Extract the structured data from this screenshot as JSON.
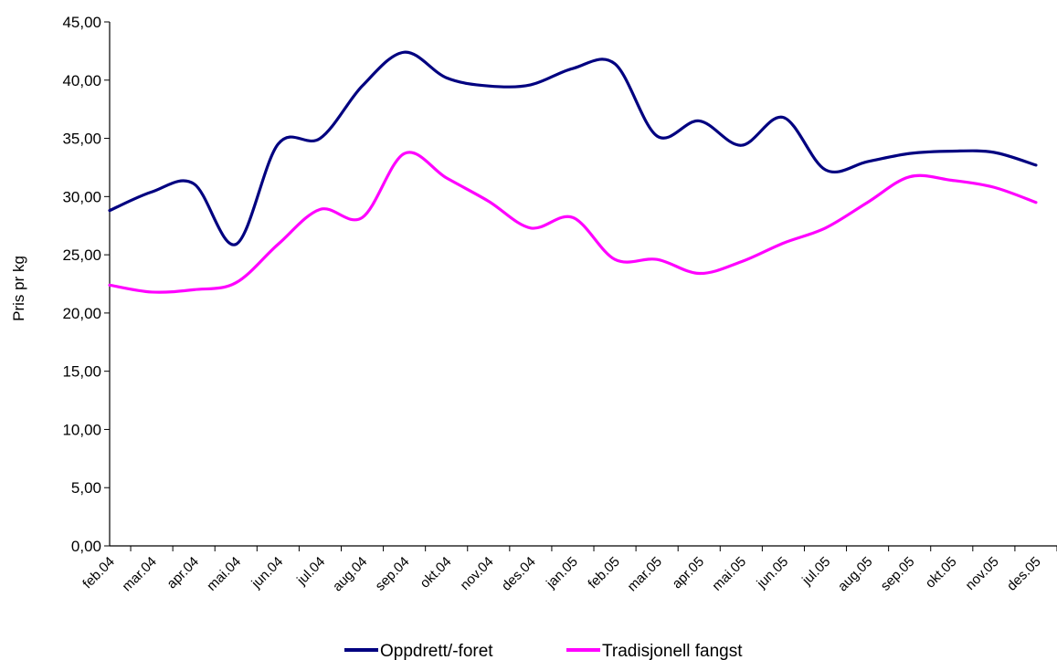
{
  "chart_data": {
    "type": "line",
    "title": "",
    "xlabel": "",
    "ylabel": "Pris pr kg",
    "ylim": [
      0,
      45
    ],
    "y_ticks": [
      "0,00",
      "5,00",
      "10,00",
      "15,00",
      "20,00",
      "25,00",
      "30,00",
      "35,00",
      "40,00",
      "45,00"
    ],
    "grid": false,
    "legend_position": "bottom",
    "categories": [
      "feb.04",
      "mar.04",
      "apr.04",
      "mai.04",
      "jun.04",
      "jul.04",
      "aug.04",
      "sep.04",
      "okt.04",
      "nov.04",
      "des.04",
      "jan.05",
      "feb.05",
      "mar.05",
      "apr.05",
      "mai.05",
      "jun.05",
      "jul.05",
      "aug.05",
      "sep.05",
      "okt.05",
      "nov.05",
      "des.05"
    ],
    "series": [
      {
        "name": "Oppdrett/-foret",
        "color": "#000080",
        "values": [
          28.8,
          30.4,
          31.1,
          25.9,
          34.5,
          35.0,
          39.5,
          42.4,
          40.2,
          39.5,
          39.6,
          41.0,
          41.4,
          35.2,
          36.5,
          34.4,
          36.8,
          32.3,
          33.0,
          33.7,
          33.9,
          33.8,
          32.7
        ]
      },
      {
        "name": "Tradisjonell fangst",
        "color": "#ff00ff",
        "values": [
          22.4,
          21.8,
          22.0,
          22.6,
          25.9,
          28.9,
          28.2,
          33.7,
          31.6,
          29.6,
          27.3,
          28.2,
          24.6,
          24.6,
          23.4,
          24.4,
          26.0,
          27.3,
          29.5,
          31.7,
          31.4,
          30.8,
          29.5
        ]
      }
    ]
  }
}
